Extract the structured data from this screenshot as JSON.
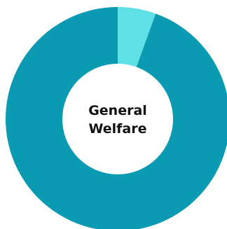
{
  "chart_data": {
    "type": "pie",
    "center_label": [
      "General",
      "Welfare"
    ],
    "slices": [
      {
        "value": 5.5,
        "color": "#5ee0e6"
      },
      {
        "value": 94.5,
        "color": "#0a9bb2"
      }
    ]
  }
}
